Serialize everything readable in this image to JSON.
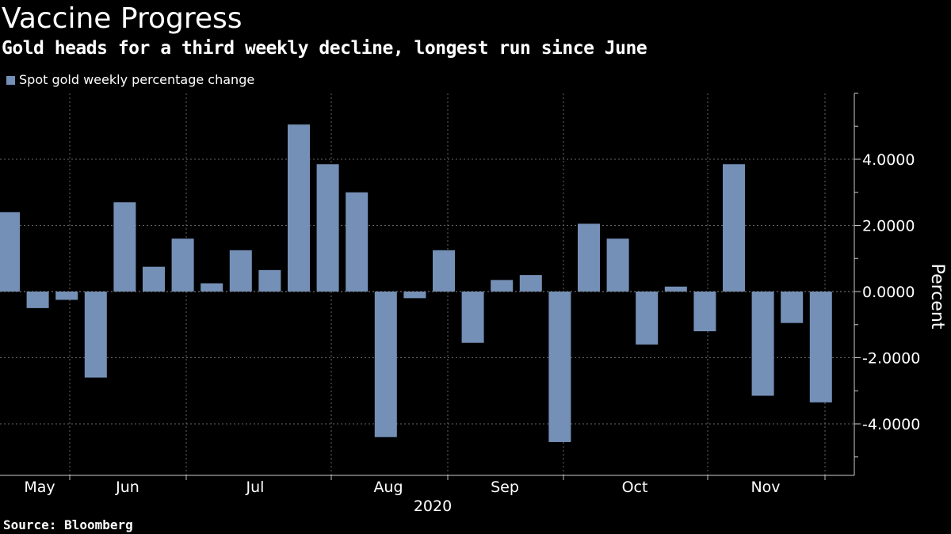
{
  "title": "Vaccine Progress",
  "subtitle": "Gold heads for a third weekly decline, longest run since June",
  "source": "Source: Bloomberg",
  "colors": {
    "background": "#000000",
    "bar": "#7590b7",
    "grid": "#666666",
    "text": "#ffffff"
  },
  "chart_data": {
    "type": "bar",
    "series": [
      {
        "name": "Spot gold weekly percentage change",
        "values": [
          2.4,
          -0.5,
          -0.25,
          -2.6,
          2.7,
          0.75,
          1.6,
          0.25,
          1.25,
          0.65,
          5.05,
          3.85,
          3.0,
          -4.4,
          -0.2,
          1.25,
          -1.55,
          0.35,
          0.5,
          -4.55,
          2.05,
          1.6,
          -1.6,
          0.15,
          -1.2,
          3.85,
          -3.15,
          -0.95,
          -3.35
        ]
      }
    ],
    "ylabel": "Percent",
    "ylim": [
      -5.5,
      6
    ],
    "yticks": [
      4.0,
      2.0,
      0.0,
      -2.0,
      -4.0
    ],
    "ytick_labels": [
      "4.0000",
      "2.0000",
      "0.0000",
      "-2.0000",
      "-4.0000"
    ],
    "x_month_labels": [
      "May",
      "Jun",
      "Jul",
      "Aug",
      "Sep",
      "Oct",
      "Nov"
    ],
    "x_year_label": "2020",
    "grid": true,
    "legend_position": "top-left"
  }
}
